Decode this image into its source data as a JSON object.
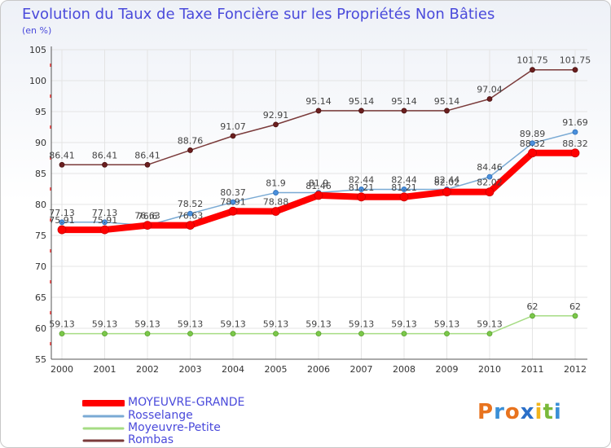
{
  "title": "Evolution du Taux de Taxe Foncière sur les Propriétés Non Bâties",
  "unit": "(en %)",
  "brand": {
    "letters": [
      "P",
      "r",
      "o",
      "x",
      "i",
      "t",
      "i"
    ],
    "colors": [
      "#e8731e",
      "#3a8fd6",
      "#e8731e",
      "#2a6fc9",
      "#f2b51d",
      "#7ab93a",
      "#3a8fd6"
    ]
  },
  "chart_data": {
    "type": "line",
    "title": "Evolution du Taux de Taxe Foncière sur les Propriétés Non Bâties",
    "ylabel": "(en %)",
    "ylim": [
      55,
      105
    ],
    "yticks": [
      "55",
      "60",
      "65",
      "70",
      "75",
      "80",
      "85",
      "90",
      "95",
      "100",
      "105"
    ],
    "grid": true,
    "categories": [
      "2000",
      "2001",
      "2002",
      "2003",
      "2004",
      "2005",
      "2006",
      "2007",
      "2008",
      "2009",
      "2010",
      "2011",
      "2012"
    ],
    "series": [
      {
        "name": "MOYEUVRE-GRANDE",
        "color": "#ff0000",
        "values": [
          75.91,
          75.91,
          76.63,
          76.63,
          78.91,
          78.88,
          81.46,
          81.21,
          81.21,
          82.02,
          82.02,
          88.32,
          88.32
        ],
        "labels": [
          "75.91",
          "75.91",
          "76.63",
          "76.63",
          "78.91",
          "78.88",
          "81.46",
          "81.21",
          "81.21",
          "82.02",
          "82.02",
          "88.32",
          "88.32"
        ]
      },
      {
        "name": "Rosselange",
        "color": "#7aaad4",
        "values": [
          77.13,
          77.13,
          76.6,
          78.52,
          80.37,
          81.9,
          81.9,
          82.44,
          82.44,
          82.44,
          84.46,
          89.89,
          91.69
        ],
        "labels": [
          "77.13",
          "77.13",
          "76.6",
          "78.52",
          "80.37",
          "81.9",
          "81.9",
          "82.44",
          "82.44",
          "82.44",
          "84.46",
          "89.89",
          "91.69"
        ]
      },
      {
        "name": "Moyeuvre-Petite",
        "color": "#a6dc84",
        "values": [
          59.13,
          59.13,
          59.13,
          59.13,
          59.13,
          59.13,
          59.13,
          59.13,
          59.13,
          59.13,
          59.13,
          62,
          62
        ],
        "labels": [
          "59.13",
          "59.13",
          "59.13",
          "59.13",
          "59.13",
          "59.13",
          "59.13",
          "59.13",
          "59.13",
          "59.13",
          "59.13",
          "62",
          "62"
        ]
      },
      {
        "name": "Rombas",
        "color": "#7a3a3a",
        "values": [
          86.41,
          86.41,
          86.41,
          88.76,
          91.07,
          92.91,
          95.14,
          95.14,
          95.14,
          95.14,
          97.04,
          101.75,
          101.75
        ],
        "labels": [
          "86.41",
          "86.41",
          "86.41",
          "88.76",
          "91.07",
          "92.91",
          "95.14",
          "95.14",
          "95.14",
          "95.14",
          "97.04",
          "101.75",
          "101.75"
        ]
      }
    ]
  }
}
